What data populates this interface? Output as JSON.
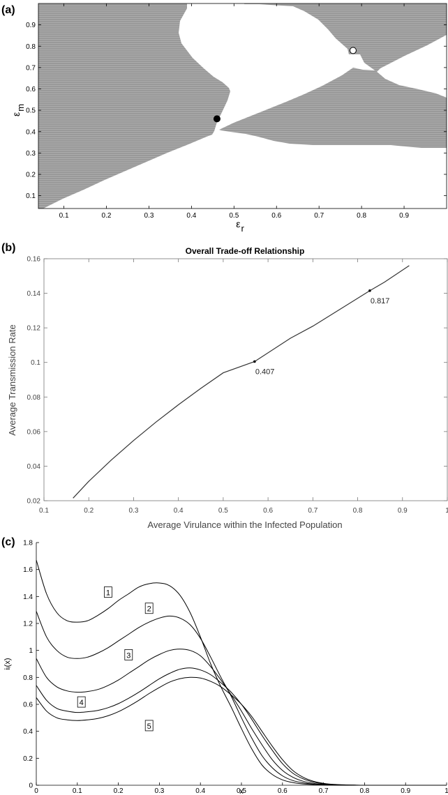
{
  "panels": [
    {
      "label": "(a)",
      "type": "heatmap",
      "title": "",
      "xlabel": "ε",
      "xlabel_sub": "r",
      "ylabel": "ε",
      "ylabel_sub": "m",
      "xlim": [
        0.04,
        1.0
      ],
      "ylim": [
        0.04,
        1.0
      ],
      "xticks": [
        "0.1",
        "0.2",
        "0.3",
        "0.4",
        "0.5",
        "0.6",
        "0.7",
        "0.8",
        "0.9"
      ],
      "yticks": [
        "0.1",
        "0.2",
        "0.3",
        "0.4",
        "0.5",
        "0.6",
        "0.7",
        "0.8",
        "0.9"
      ],
      "colors": {
        "region": "#999999",
        "background": "#ffffff"
      },
      "points": [
        {
          "x": 0.46,
          "y": 0.46,
          "style": "filled"
        },
        {
          "x": 0.78,
          "y": 0.78,
          "style": "open"
        }
      ]
    },
    {
      "label": "(b)",
      "type": "line",
      "title": "Overall Trade-off Relationship",
      "xlabel": "Average Virulance within the Infected Population",
      "ylabel": "Average Transmission Rate",
      "xlim": [
        0.1,
        1.0
      ],
      "ylim": [
        0.02,
        0.16
      ],
      "xticks": [
        "0.1",
        "0.2",
        "0.3",
        "0.4",
        "0.5",
        "0.6",
        "0.7",
        "0.8",
        "0.9",
        "1"
      ],
      "yticks": [
        "0.02",
        "0.04",
        "0.06",
        "0.08",
        "0.1",
        "0.12",
        "0.14",
        "0.16"
      ],
      "x": [
        0.165,
        0.2,
        0.25,
        0.3,
        0.35,
        0.4,
        0.45,
        0.5,
        0.57,
        0.65,
        0.7,
        0.75,
        0.827,
        0.86,
        0.915
      ],
      "y": [
        0.0215,
        0.0312,
        0.0435,
        0.0548,
        0.0655,
        0.0755,
        0.085,
        0.094,
        0.1005,
        0.114,
        0.121,
        0.129,
        0.1415,
        0.1465,
        0.156
      ],
      "annotations": [
        {
          "x": 0.57,
          "y": 0.1005,
          "text": "0.407"
        },
        {
          "x": 0.827,
          "y": 0.1415,
          "text": "0.817"
        }
      ]
    },
    {
      "label": "(c)",
      "type": "line",
      "title": "",
      "xlabel": "x",
      "ylabel": "iᵢ(x)",
      "xlim": [
        0,
        1
      ],
      "ylim": [
        0,
        1.8
      ],
      "xticks": [
        "0",
        "0.1",
        "0.2",
        "0.3",
        "0.4",
        "0.5",
        "0.6",
        "0.7",
        "0.8",
        "0.9",
        "1"
      ],
      "yticks": [
        "0",
        "0.2",
        "0.4",
        "0.6",
        "0.8",
        "1",
        "1.2",
        "1.4",
        "1.6",
        "1.8"
      ],
      "x": [
        0,
        0.025,
        0.05,
        0.075,
        0.1,
        0.125,
        0.15,
        0.175,
        0.2,
        0.225,
        0.25,
        0.275,
        0.3,
        0.325,
        0.35,
        0.375,
        0.4,
        0.425,
        0.45,
        0.475,
        0.5,
        0.525,
        0.55,
        0.575,
        0.6,
        0.625,
        0.65,
        0.675,
        0.7,
        0.725,
        0.75,
        0.775,
        0.8,
        0.85,
        0.9,
        0.95,
        1
      ],
      "series": [
        {
          "name": "1",
          "label_at": [
            0.175,
            1.43
          ],
          "values": [
            1.67,
            1.42,
            1.28,
            1.22,
            1.21,
            1.22,
            1.26,
            1.31,
            1.37,
            1.42,
            1.47,
            1.495,
            1.5,
            1.48,
            1.41,
            1.28,
            1.1,
            0.9,
            0.73,
            0.58,
            0.42,
            0.27,
            0.15,
            0.08,
            0.04,
            0.02,
            0.01,
            0.005,
            0.002,
            0.001,
            0,
            0,
            0,
            0,
            0,
            0,
            0
          ]
        },
        {
          "name": "2",
          "label_at": [
            0.275,
            1.31
          ],
          "values": [
            1.29,
            1.1,
            1.0,
            0.95,
            0.94,
            0.95,
            0.98,
            1.02,
            1.07,
            1.12,
            1.17,
            1.21,
            1.24,
            1.255,
            1.24,
            1.19,
            1.09,
            0.95,
            0.8,
            0.66,
            0.5,
            0.35,
            0.22,
            0.13,
            0.07,
            0.035,
            0.018,
            0.008,
            0.003,
            0.001,
            0,
            0,
            0,
            0,
            0,
            0,
            0
          ]
        },
        {
          "name": "3",
          "label_at": [
            0.225,
            0.965
          ],
          "values": [
            0.94,
            0.8,
            0.73,
            0.7,
            0.69,
            0.695,
            0.71,
            0.74,
            0.78,
            0.83,
            0.88,
            0.93,
            0.97,
            1.0,
            1.01,
            1.0,
            0.96,
            0.88,
            0.78,
            0.67,
            0.55,
            0.42,
            0.3,
            0.19,
            0.11,
            0.06,
            0.03,
            0.014,
            0.006,
            0.002,
            0.001,
            0,
            0,
            0,
            0,
            0,
            0
          ]
        },
        {
          "name": "4",
          "label_at": [
            0.11,
            0.615
          ],
          "values": [
            0.74,
            0.63,
            0.57,
            0.55,
            0.54,
            0.545,
            0.555,
            0.575,
            0.605,
            0.645,
            0.69,
            0.74,
            0.79,
            0.83,
            0.86,
            0.87,
            0.855,
            0.82,
            0.76,
            0.69,
            0.6,
            0.49,
            0.37,
            0.26,
            0.16,
            0.09,
            0.048,
            0.024,
            0.011,
            0.005,
            0.002,
            0.001,
            0,
            0,
            0,
            0,
            0
          ]
        },
        {
          "name": "5",
          "label_at": [
            0.275,
            0.44
          ],
          "values": [
            0.65,
            0.55,
            0.5,
            0.485,
            0.48,
            0.485,
            0.495,
            0.515,
            0.545,
            0.585,
            0.63,
            0.68,
            0.725,
            0.765,
            0.79,
            0.8,
            0.795,
            0.77,
            0.73,
            0.67,
            0.6,
            0.51,
            0.4,
            0.29,
            0.19,
            0.11,
            0.06,
            0.03,
            0.014,
            0.006,
            0.003,
            0.001,
            0,
            0,
            0,
            0,
            0
          ]
        }
      ]
    }
  ]
}
